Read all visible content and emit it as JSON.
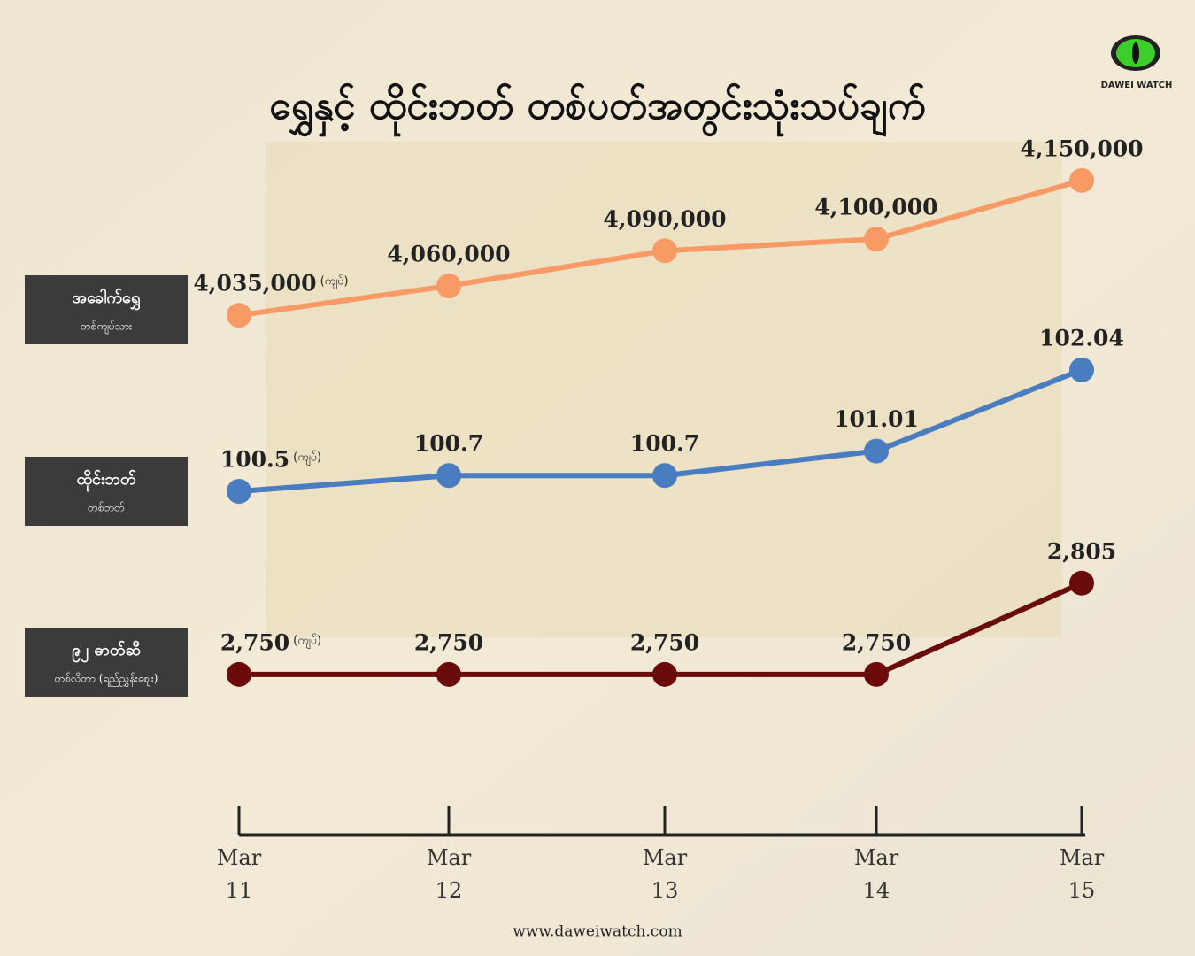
{
  "brand": "DAWEI WATCH",
  "footer": "www.daweiwatch.com",
  "chart_data": {
    "type": "line",
    "title": "ရွှေနှင့် ထိုင်းဘတ် တစ်ပတ်အတွင်းသုံးသပ်ချက်",
    "categories": [
      "Mar 11",
      "Mar 12",
      "Mar 13",
      "Mar 14",
      "Mar 15"
    ],
    "series": [
      {
        "name": "အခေါက်ရွှေ",
        "sub": "တစ်ကျပ်သား",
        "unit": "(ကျပ်)",
        "color": "#f79a66",
        "ylim": [
          4017000,
          4168000
        ],
        "values": [
          4035000,
          4060000,
          4090000,
          4100000,
          4150000
        ],
        "value_labels": [
          "4,035,000",
          "4,060,000",
          "4,090,000",
          "4,100,000",
          "4,150,000"
        ]
      },
      {
        "name": "ထိုင်းဘတ်",
        "sub": "တစ်ဘတ်",
        "unit": "(ကျပ်)",
        "color": "#4a7cc0",
        "ylim": [
          100.22,
          102.24
        ],
        "values": [
          100.5,
          100.7,
          100.7,
          101.01,
          102.04
        ]
      },
      {
        "name": "၉၂ ဓာတ်ဆီ",
        "sub": "တစ်လီတာ (ရည်ညွှန်းဈေး)",
        "unit": "(ကျပ်)",
        "color": "#6b0a0a",
        "ylim": [
          2735,
          2815
        ],
        "values": [
          2750,
          2750,
          2750,
          2750,
          2805
        ],
        "value_labels": [
          "2,750",
          "2,750",
          "2,750",
          "2,750",
          "2,805"
        ]
      }
    ]
  }
}
